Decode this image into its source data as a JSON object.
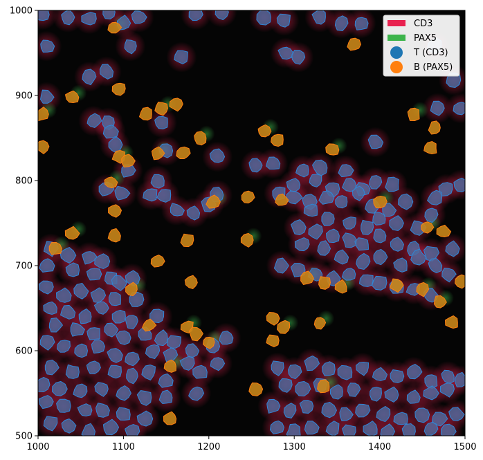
{
  "chart_data": {
    "type": "scatter",
    "title": "",
    "xlabel": "",
    "ylabel": "",
    "xlim": [
      1000,
      1500
    ],
    "ylim": [
      500,
      1000
    ],
    "x_ticks": [
      "1000",
      "1100",
      "1200",
      "1300",
      "1400",
      "1500"
    ],
    "y_ticks": [
      "500",
      "600",
      "700",
      "800",
      "900",
      "1000"
    ],
    "grid": false,
    "background": "fluorescence image (dark) with CD3 (red) and PAX5 (green) channel signal",
    "legend": {
      "placement": "top-right",
      "entries": [
        {
          "label": "CD3",
          "kind": "patch",
          "color": "#e8214f"
        },
        {
          "label": "PAX5",
          "kind": "patch",
          "color": "#3cb44b"
        },
        {
          "label": "T (CD3)",
          "kind": "marker",
          "color": "#1f77b4"
        },
        {
          "label": "B (PAX5)",
          "kind": "marker",
          "color": "#ff7f0e"
        }
      ]
    },
    "series": [
      {
        "name": "T (CD3)",
        "color": "#1f77b4",
        "points": [
          [
            1005,
            995
          ],
          [
            1035,
            992
          ],
          [
            1060,
            990
          ],
          [
            1083,
            998
          ],
          [
            1100,
            985
          ],
          [
            1118,
            992
          ],
          [
            1185,
            995
          ],
          [
            1215,
            998
          ],
          [
            1265,
            992
          ],
          [
            1288,
            988
          ],
          [
            1330,
            992
          ],
          [
            1355,
            985
          ],
          [
            1378,
            985
          ],
          [
            1010,
            958
          ],
          [
            1108,
            958
          ],
          [
            1168,
            945
          ],
          [
            1290,
            950
          ],
          [
            1305,
            945
          ],
          [
            1465,
            958
          ],
          [
            1487,
            918
          ],
          [
            1060,
            922
          ],
          [
            1080,
            928
          ],
          [
            1010,
            898
          ],
          [
            1468,
            885
          ],
          [
            1495,
            885
          ],
          [
            1082,
            868
          ],
          [
            1065,
            870
          ],
          [
            1145,
            868
          ],
          [
            1085,
            858
          ],
          [
            1090,
            842
          ],
          [
            1395,
            845
          ],
          [
            1150,
            835
          ],
          [
            1210,
            828
          ],
          [
            1105,
            812
          ],
          [
            1140,
            800
          ],
          [
            1255,
            818
          ],
          [
            1310,
            812
          ],
          [
            1330,
            815
          ],
          [
            1275,
            820
          ],
          [
            1360,
            812
          ],
          [
            1300,
            795
          ],
          [
            1325,
            800
          ],
          [
            1345,
            790
          ],
          [
            1365,
            795
          ],
          [
            1380,
            790
          ],
          [
            1395,
            798
          ],
          [
            1415,
            795
          ],
          [
            1478,
            790
          ],
          [
            1495,
            795
          ],
          [
            1132,
            783
          ],
          [
            1148,
            783
          ],
          [
            1162,
            765
          ],
          [
            1182,
            762
          ],
          [
            1200,
            772
          ],
          [
            1210,
            783
          ],
          [
            1282,
            785
          ],
          [
            1300,
            780
          ],
          [
            1318,
            775
          ],
          [
            1338,
            780
          ],
          [
            1355,
            775
          ],
          [
            1375,
            785
          ],
          [
            1392,
            770
          ],
          [
            1410,
            765
          ],
          [
            1430,
            775
          ],
          [
            1465,
            780
          ],
          [
            1098,
            785
          ],
          [
            1080,
            790
          ],
          [
            1320,
            765
          ],
          [
            1340,
            755
          ],
          [
            1365,
            750
          ],
          [
            1385,
            745
          ],
          [
            1400,
            755
          ],
          [
            1420,
            750
          ],
          [
            1445,
            745
          ],
          [
            1460,
            760
          ],
          [
            1305,
            745
          ],
          [
            1325,
            740
          ],
          [
            1345,
            735
          ],
          [
            1365,
            730
          ],
          [
            1380,
            725
          ],
          [
            1400,
            735
          ],
          [
            1420,
            725
          ],
          [
            1440,
            720
          ],
          [
            1460,
            715
          ],
          [
            1485,
            720
          ],
          [
            1310,
            725
          ],
          [
            1335,
            720
          ],
          [
            1355,
            710
          ],
          [
            1380,
            705
          ],
          [
            1400,
            710
          ],
          [
            1425,
            700
          ],
          [
            1445,
            710
          ],
          [
            1465,
            700
          ],
          [
            1480,
            690
          ],
          [
            1015,
            720
          ],
          [
            1035,
            712
          ],
          [
            1060,
            710
          ],
          [
            1075,
            705
          ],
          [
            1010,
            700
          ],
          [
            1040,
            695
          ],
          [
            1065,
            690
          ],
          [
            1085,
            685
          ],
          [
            1095,
            680
          ],
          [
            1110,
            685
          ],
          [
            1285,
            700
          ],
          [
            1305,
            695
          ],
          [
            1325,
            690
          ],
          [
            1345,
            685
          ],
          [
            1365,
            690
          ],
          [
            1385,
            682
          ],
          [
            1400,
            680
          ],
          [
            1420,
            675
          ],
          [
            1440,
            672
          ],
          [
            1460,
            665
          ],
          [
            1010,
            675
          ],
          [
            1030,
            665
          ],
          [
            1050,
            670
          ],
          [
            1070,
            665
          ],
          [
            1090,
            660
          ],
          [
            1115,
            660
          ],
          [
            1015,
            650
          ],
          [
            1035,
            645
          ],
          [
            1055,
            640
          ],
          [
            1075,
            650
          ],
          [
            1095,
            640
          ],
          [
            1110,
            635
          ],
          [
            1140,
            640
          ],
          [
            1020,
            630
          ],
          [
            1045,
            625
          ],
          [
            1065,
            620
          ],
          [
            1085,
            625
          ],
          [
            1100,
            615
          ],
          [
            1125,
            620
          ],
          [
            1145,
            615
          ],
          [
            1010,
            610
          ],
          [
            1030,
            605
          ],
          [
            1050,
            600
          ],
          [
            1070,
            605
          ],
          [
            1090,
            595
          ],
          [
            1110,
            590
          ],
          [
            1160,
            610
          ],
          [
            1180,
            600
          ],
          [
            1205,
            605
          ],
          [
            1220,
            615
          ],
          [
            1175,
            585
          ],
          [
            1190,
            575
          ],
          [
            1210,
            585
          ],
          [
            1135,
            600
          ],
          [
            1155,
            595
          ],
          [
            1015,
            580
          ],
          [
            1040,
            575
          ],
          [
            1065,
            580
          ],
          [
            1090,
            575
          ],
          [
            1110,
            570
          ],
          [
            1130,
            575
          ],
          [
            1150,
            565
          ],
          [
            1005,
            560
          ],
          [
            1025,
            555
          ],
          [
            1050,
            552
          ],
          [
            1075,
            555
          ],
          [
            1100,
            550
          ],
          [
            1125,
            545
          ],
          [
            1150,
            545
          ],
          [
            1010,
            540
          ],
          [
            1030,
            535
          ],
          [
            1055,
            530
          ],
          [
            1075,
            530
          ],
          [
            1100,
            525
          ],
          [
            1125,
            520
          ],
          [
            1015,
            515
          ],
          [
            1035,
            512
          ],
          [
            1060,
            505
          ],
          [
            1085,
            510
          ],
          [
            1110,
            505
          ],
          [
            1185,
            550
          ],
          [
            1280,
            580
          ],
          [
            1300,
            575
          ],
          [
            1320,
            585
          ],
          [
            1340,
            578
          ],
          [
            1360,
            575
          ],
          [
            1380,
            580
          ],
          [
            1400,
            572
          ],
          [
            1420,
            570
          ],
          [
            1440,
            575
          ],
          [
            1460,
            565
          ],
          [
            1480,
            570
          ],
          [
            1495,
            565
          ],
          [
            1290,
            560
          ],
          [
            1310,
            555
          ],
          [
            1330,
            560
          ],
          [
            1350,
            552
          ],
          [
            1370,
            555
          ],
          [
            1395,
            550
          ],
          [
            1415,
            548
          ],
          [
            1440,
            545
          ],
          [
            1460,
            550
          ],
          [
            1480,
            555
          ],
          [
            1275,
            535
          ],
          [
            1295,
            530
          ],
          [
            1315,
            535
          ],
          [
            1340,
            530
          ],
          [
            1360,
            525
          ],
          [
            1380,
            530
          ],
          [
            1405,
            525
          ],
          [
            1425,
            520
          ],
          [
            1450,
            525
          ],
          [
            1470,
            520
          ],
          [
            1490,
            525
          ],
          [
            1280,
            510
          ],
          [
            1300,
            505
          ],
          [
            1320,
            510
          ],
          [
            1345,
            508
          ],
          [
            1365,
            505
          ],
          [
            1390,
            508
          ],
          [
            1410,
            505
          ],
          [
            1435,
            505
          ],
          [
            1460,
            508
          ],
          [
            1480,
            505
          ]
        ]
      },
      {
        "name": "B (PAX5)",
        "color": "#ff7f0e",
        "points": [
          [
            1090,
            980
          ],
          [
            1370,
            960
          ],
          [
            1040,
            898
          ],
          [
            1095,
            908
          ],
          [
            1005,
            878
          ],
          [
            1127,
            878
          ],
          [
            1145,
            885
          ],
          [
            1162,
            890
          ],
          [
            1440,
            878
          ],
          [
            1465,
            862
          ],
          [
            1265,
            858
          ],
          [
            1280,
            848
          ],
          [
            1190,
            850
          ],
          [
            1005,
            840
          ],
          [
            1140,
            832
          ],
          [
            1170,
            832
          ],
          [
            1095,
            828
          ],
          [
            1105,
            823
          ],
          [
            1345,
            836
          ],
          [
            1460,
            838
          ],
          [
            1085,
            798
          ],
          [
            1245,
            780
          ],
          [
            1205,
            775
          ],
          [
            1285,
            777
          ],
          [
            1400,
            775
          ],
          [
            1090,
            765
          ],
          [
            1040,
            738
          ],
          [
            1090,
            735
          ],
          [
            1455,
            745
          ],
          [
            1475,
            740
          ],
          [
            1020,
            720
          ],
          [
            1175,
            730
          ],
          [
            1245,
            730
          ],
          [
            1140,
            705
          ],
          [
            1110,
            672
          ],
          [
            1180,
            680
          ],
          [
            1315,
            685
          ],
          [
            1335,
            680
          ],
          [
            1355,
            675
          ],
          [
            1420,
            677
          ],
          [
            1450,
            672
          ],
          [
            1495,
            682
          ],
          [
            1470,
            657
          ],
          [
            1130,
            630
          ],
          [
            1175,
            628
          ],
          [
            1185,
            620
          ],
          [
            1200,
            610
          ],
          [
            1275,
            638
          ],
          [
            1288,
            628
          ],
          [
            1275,
            612
          ],
          [
            1330,
            633
          ],
          [
            1485,
            633
          ],
          [
            1155,
            582
          ],
          [
            1255,
            555
          ],
          [
            1335,
            558
          ],
          [
            1155,
            520
          ]
        ]
      }
    ]
  }
}
